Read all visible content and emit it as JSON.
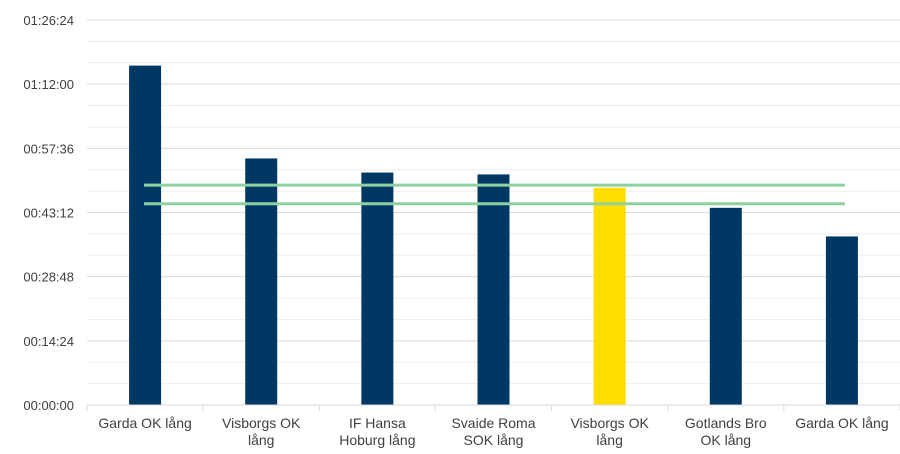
{
  "chart_data": {
    "type": "bar",
    "title": "",
    "xlabel": "",
    "ylabel": "",
    "categories": [
      [
        "Garda OK lång"
      ],
      [
        "Visborgs OK",
        "lång"
      ],
      [
        "IF Hansa",
        "Hoburg lång"
      ],
      [
        "Svaide Roma",
        "SOK lång"
      ],
      [
        "Visborgs OK",
        "lång"
      ],
      [
        "Gotlands Bro",
        "OK lång"
      ],
      [
        "Garda OK lång"
      ]
    ],
    "values_seconds": [
      4570,
      3320,
      3130,
      3105,
      2925,
      2655,
      2270
    ],
    "bar_colors": [
      "#003865",
      "#003865",
      "#003865",
      "#003865",
      "#FFDD00",
      "#003865",
      "#003865"
    ],
    "ylim_seconds": [
      0,
      5184
    ],
    "y_ticks": [
      {
        "value": 0,
        "label": "00:00:00"
      },
      {
        "value": 864,
        "label": "00:14:24"
      },
      {
        "value": 1728,
        "label": "00:28:48"
      },
      {
        "value": 2592,
        "label": "00:43:12"
      },
      {
        "value": 3456,
        "label": "00:57:36"
      },
      {
        "value": 4320,
        "label": "01:12:00"
      },
      {
        "value": 5184,
        "label": "01:26:24"
      }
    ],
    "minor_grid_step_seconds": 288,
    "reference_lines_seconds": [
      2710,
      2960
    ],
    "reference_line_color": "#8FD19E",
    "grid": true,
    "legend": "none"
  }
}
